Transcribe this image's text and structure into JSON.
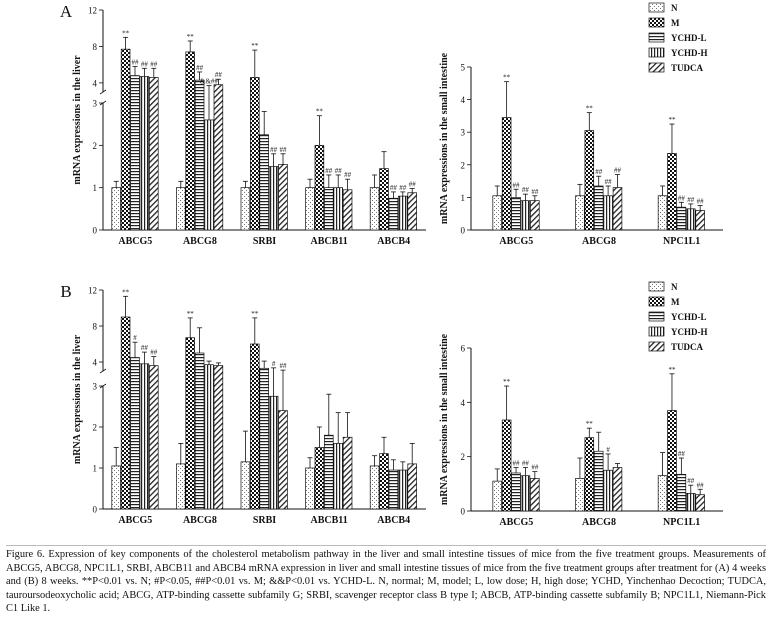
{
  "figure": {
    "caption": "Figure 6. Expression of key components of the cholesterol metabolism pathway in the liver and small intestine tissues of mice from the five treatment groups. Measurements of ABCG5, ABCG8, NPC1L1, SRBI, ABCB11 and ABCB4 mRNA expression in liver and small intestine tissues of mice from the five treatment groups after treatment for (A) 4 weeks and (B) 8 weeks. **P<0.01 vs. N; #P<0.05, ##P<0.01 vs. M; &&P<0.01 vs. YCHD-L. N, normal; M, model; L, low dose; H, high dose; YCHD, Yinchenhao Decoction; TUDCA, tauroursodeoxycholic acid; ABCG, ATP-binding cassette subfamily G; SRBI, scavenger receptor class B type I; ABCB, ATP-binding cassette subfamily B; NPC1L1, Niemann-Pick C1 Like 1."
  },
  "groups": [
    "N",
    "M",
    "YCHD-L",
    "YCHD-H",
    "TUDCA"
  ],
  "chart_data": [
    {
      "type": "bar",
      "panel": "A",
      "title": "",
      "ylabel": "mRNA expressions in the liver",
      "categories": [
        "ABCG5",
        "ABCG8",
        "SRBI",
        "ABCB11",
        "ABCB4"
      ],
      "ylim": [
        0,
        12
      ],
      "axis_break": [
        3,
        3
      ],
      "yticks_lower": [
        0,
        1,
        2,
        3
      ],
      "yticks_upper": [
        4,
        8,
        12
      ],
      "series": [
        {
          "name": "N",
          "values": [
            1.0,
            1.0,
            1.0,
            1.0,
            1.0
          ],
          "errors": [
            0.15,
            0.15,
            0.15,
            0.2,
            0.3
          ]
        },
        {
          "name": "M",
          "values": [
            7.7,
            7.4,
            4.6,
            2.0,
            1.45
          ],
          "errors": [
            1.3,
            1.2,
            3.0,
            0.7,
            0.4
          ]
        },
        {
          "name": "YCHD-L",
          "values": [
            4.8,
            4.3,
            2.25,
            1.0,
            0.75
          ],
          "errors": [
            1.0,
            0.9,
            0.55,
            0.3,
            0.15
          ]
        },
        {
          "name": "YCHD-H",
          "values": [
            4.7,
            2.6,
            1.5,
            1.0,
            0.8
          ],
          "errors": [
            0.9,
            1.1,
            0.3,
            0.3,
            0.1
          ]
        },
        {
          "name": "TUDCA",
          "values": [
            4.6,
            3.8,
            1.55,
            0.95,
            0.88
          ],
          "errors": [
            1.0,
            0.6,
            0.25,
            0.25,
            0.1
          ]
        }
      ],
      "annotations": [
        [
          "",
          "**",
          "##",
          "##",
          "##"
        ],
        [
          "",
          "**",
          "##",
          "&&##",
          "##"
        ],
        [
          "",
          "**",
          "",
          "##",
          "##"
        ],
        [
          "",
          "**",
          "##",
          "##",
          "##"
        ],
        [
          "",
          "",
          "##",
          "##",
          "##"
        ]
      ]
    },
    {
      "type": "bar",
      "panel": "A",
      "title": "",
      "ylabel": "mRNA expressions in the small intestine",
      "categories": [
        "ABCG5",
        "ABCG8",
        "NPC1L1"
      ],
      "ylim": [
        0,
        5
      ],
      "yticks": [
        0,
        1,
        2,
        3,
        4,
        5
      ],
      "series": [
        {
          "name": "N",
          "values": [
            1.05,
            1.05,
            1.05
          ],
          "errors": [
            0.3,
            0.35,
            0.3
          ]
        },
        {
          "name": "M",
          "values": [
            3.45,
            3.05,
            2.35
          ],
          "errors": [
            1.1,
            0.55,
            0.9
          ]
        },
        {
          "name": "YCHD-L",
          "values": [
            1.0,
            1.35,
            0.7
          ],
          "errors": [
            0.25,
            0.3,
            0.15
          ]
        },
        {
          "name": "YCHD-H",
          "values": [
            0.9,
            1.05,
            0.65
          ],
          "errors": [
            0.2,
            0.3,
            0.15
          ]
        },
        {
          "name": "TUDCA",
          "values": [
            0.9,
            1.3,
            0.6
          ],
          "errors": [
            0.15,
            0.4,
            0.15
          ]
        }
      ],
      "annotations": [
        [
          "",
          "**",
          "##",
          "##",
          "##"
        ],
        [
          "",
          "**",
          "##",
          "##",
          "##"
        ],
        [
          "",
          "**",
          "##",
          "##",
          "##"
        ]
      ]
    },
    {
      "type": "bar",
      "panel": "B",
      "title": "",
      "ylabel": "mRNA expressions in the liver",
      "categories": [
        "ABCG5",
        "ABCG8",
        "SRBI",
        "ABCB11",
        "ABCB4"
      ],
      "ylim": [
        0,
        12
      ],
      "axis_break": [
        3,
        3
      ],
      "yticks_lower": [
        0,
        1,
        2,
        3
      ],
      "yticks_upper": [
        4,
        8,
        12
      ],
      "series": [
        {
          "name": "N",
          "values": [
            1.05,
            1.1,
            1.15,
            1.0,
            1.05
          ],
          "errors": [
            0.45,
            0.5,
            0.75,
            0.25,
            0.25
          ]
        },
        {
          "name": "M",
          "values": [
            9.0,
            6.7,
            6.0,
            1.5,
            1.35
          ],
          "errors": [
            2.3,
            2.2,
            2.9,
            0.5,
            0.4
          ]
        },
        {
          "name": "YCHD-L",
          "values": [
            4.5,
            5.0,
            3.3,
            1.8,
            0.95
          ],
          "errors": [
            1.7,
            2.8,
            0.8,
            1.0,
            0.25
          ]
        },
        {
          "name": "YCHD-H",
          "values": [
            3.8,
            3.7,
            2.75,
            1.6,
            0.95
          ],
          "errors": [
            1.3,
            0.4,
            0.6,
            0.75,
            0.2
          ]
        },
        {
          "name": "TUDCA",
          "values": [
            3.6,
            3.6,
            2.4,
            1.75,
            1.1
          ],
          "errors": [
            1.0,
            0.3,
            0.7,
            0.6,
            0.5
          ]
        }
      ],
      "annotations": [
        [
          "",
          "**",
          "#",
          "##",
          "##"
        ],
        [
          "",
          "**",
          "",
          "",
          ""
        ],
        [
          "",
          "**",
          "",
          "#",
          "##"
        ],
        [
          "",
          "",
          "",
          "",
          ""
        ],
        [
          "",
          "",
          "",
          "",
          ""
        ]
      ]
    },
    {
      "type": "bar",
      "panel": "B",
      "title": "",
      "ylabel": "mRNA expressions in the small intestine",
      "categories": [
        "ABCG5",
        "ABCG8",
        "NPC1L1"
      ],
      "ylim": [
        0,
        6
      ],
      "yticks": [
        0,
        2,
        4,
        6
      ],
      "series": [
        {
          "name": "N",
          "values": [
            1.1,
            1.2,
            1.3
          ],
          "errors": [
            0.45,
            0.75,
            0.85
          ]
        },
        {
          "name": "M",
          "values": [
            3.35,
            2.7,
            3.7
          ],
          "errors": [
            1.25,
            0.35,
            1.35
          ]
        },
        {
          "name": "YCHD-L",
          "values": [
            1.4,
            2.2,
            1.35
          ],
          "errors": [
            0.2,
            0.7,
            0.6
          ]
        },
        {
          "name": "YCHD-H",
          "values": [
            1.3,
            1.5,
            0.65
          ],
          "errors": [
            0.3,
            0.6,
            0.3
          ]
        },
        {
          "name": "TUDCA",
          "values": [
            1.2,
            1.6,
            0.6
          ],
          "errors": [
            0.25,
            0.15,
            0.2
          ]
        }
      ],
      "annotations": [
        [
          "",
          "**",
          "##",
          "##",
          "##"
        ],
        [
          "",
          "**",
          "",
          "#",
          ""
        ],
        [
          "",
          "**",
          "##",
          "##",
          "##"
        ]
      ]
    }
  ]
}
